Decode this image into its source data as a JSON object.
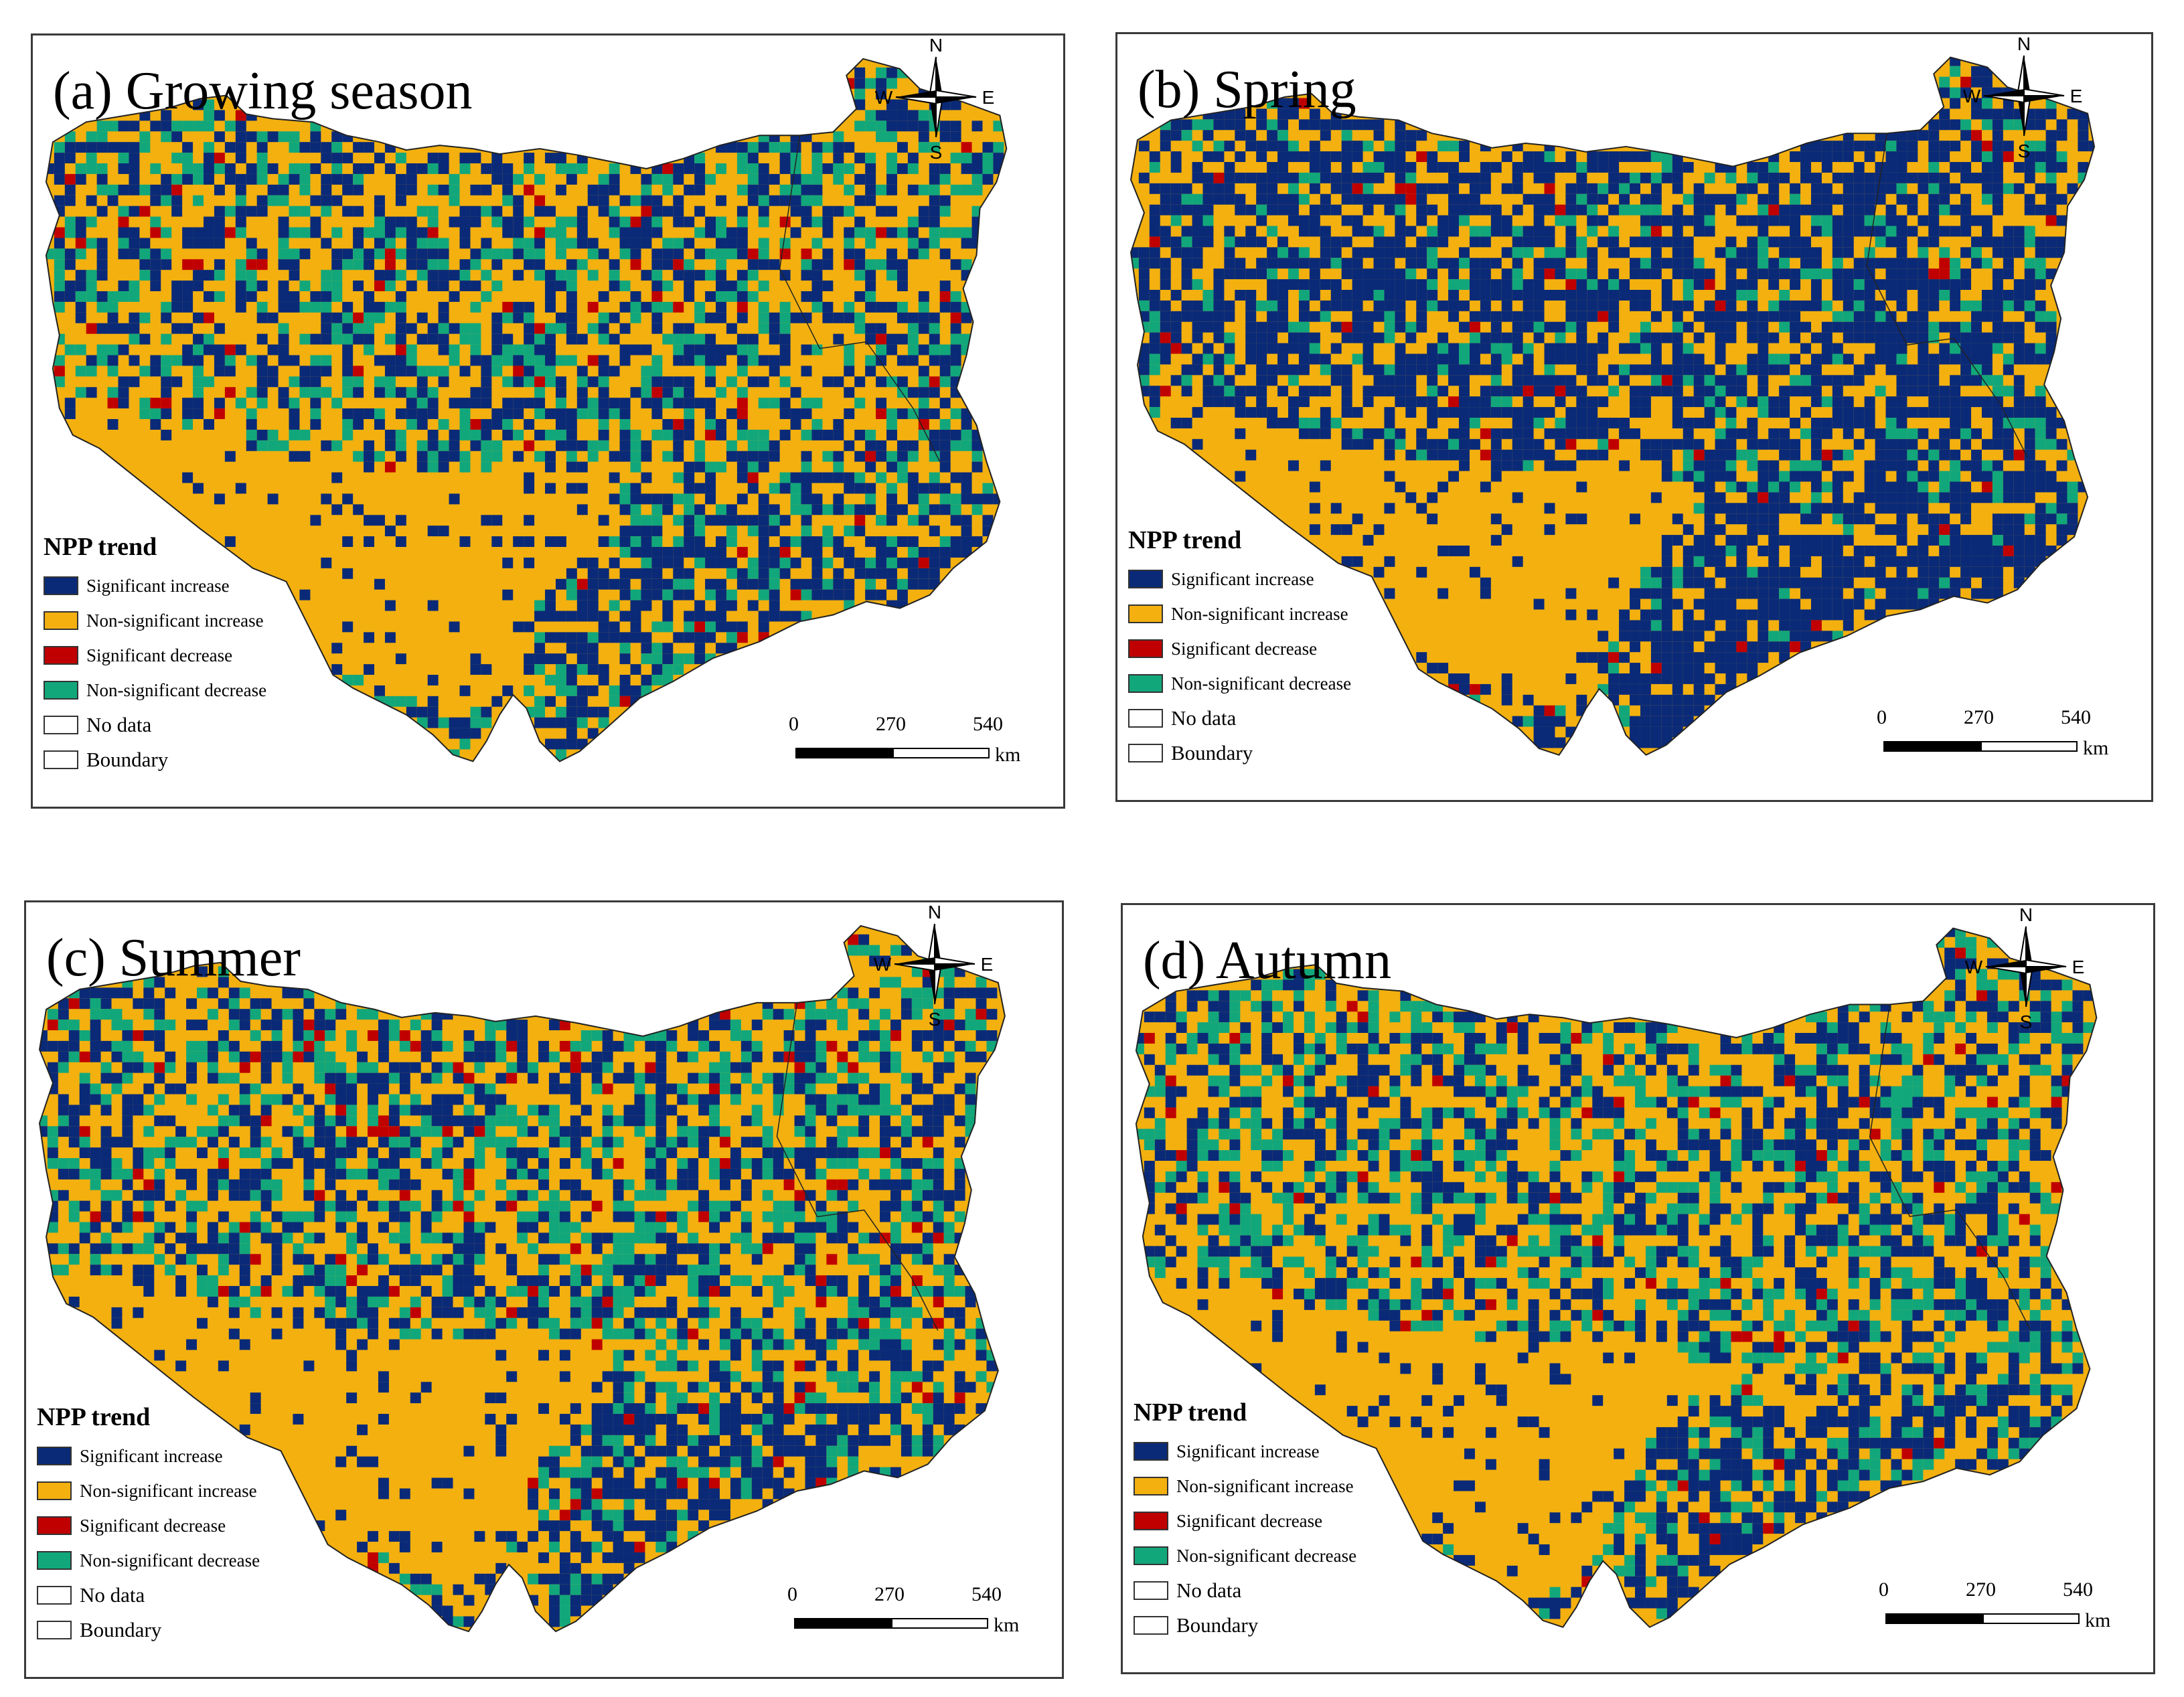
{
  "colors": {
    "significant_increase": "#0a2a78",
    "non_significant_increase": "#f3b00f",
    "significant_decrease": "#c00000",
    "non_significant_decrease": "#12a77b",
    "no_data": "#ffffff",
    "boundary": "#222222"
  },
  "compass": {
    "n": "N",
    "s": "S",
    "w": "W",
    "e": "E"
  },
  "legend": {
    "title": "NPP trend",
    "items": [
      {
        "label": "Significant increase",
        "color_key": "significant_increase"
      },
      {
        "label": "Non-significant increase",
        "color_key": "non_significant_increase"
      },
      {
        "label": "Significant decrease",
        "color_key": "significant_decrease"
      },
      {
        "label": "Non-significant decrease",
        "color_key": "non_significant_decrease"
      },
      {
        "label": "No data",
        "color_key": "no_data"
      },
      {
        "label": "Boundary",
        "color_key": "boundary"
      }
    ]
  },
  "scale": {
    "ticks": [
      "0",
      "270",
      "540"
    ],
    "unit": "km"
  },
  "panels": [
    {
      "id": "a",
      "title": "(a) Growing season",
      "mix": {
        "significant_increase": 0.18,
        "non_significant_increase": 0.52,
        "significant_decrease": 0.03,
        "non_significant_decrease": 0.27
      }
    },
    {
      "id": "b",
      "title": "(b) Spring",
      "mix": {
        "significant_increase": 0.34,
        "non_significant_increase": 0.48,
        "significant_decrease": 0.02,
        "non_significant_decrease": 0.16
      }
    },
    {
      "id": "c",
      "title": "(c) Summer",
      "mix": {
        "significant_increase": 0.17,
        "non_significant_increase": 0.5,
        "significant_decrease": 0.04,
        "non_significant_decrease": 0.29
      }
    },
    {
      "id": "d",
      "title": "(d) Autumn",
      "mix": {
        "significant_increase": 0.16,
        "non_significant_increase": 0.54,
        "significant_decrease": 0.03,
        "non_significant_decrease": 0.27
      }
    }
  ]
}
